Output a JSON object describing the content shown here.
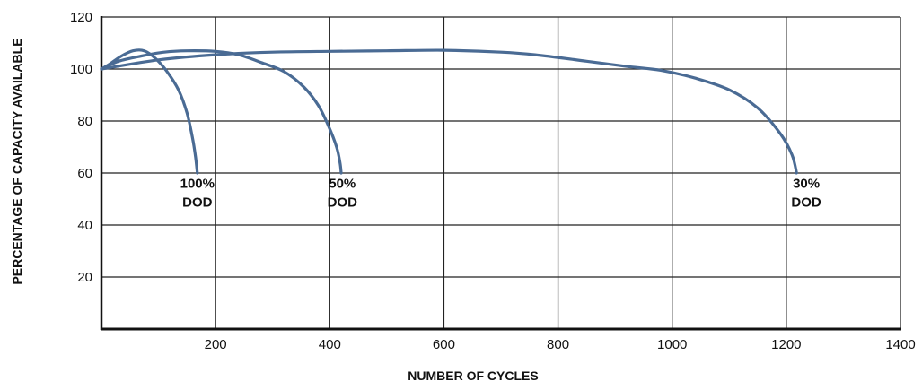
{
  "chart_data": {
    "type": "line",
    "title": "",
    "xlabel": "NUMBER OF CYCLES",
    "ylabel": "PERCENTAGE OF CAPACITY AVAILABLE",
    "xlim": [
      0,
      1400
    ],
    "ylim": [
      0,
      120
    ],
    "x_ticks": [
      200,
      400,
      600,
      800,
      1000,
      1200,
      1400
    ],
    "y_ticks": [
      20,
      40,
      60,
      80,
      100,
      120
    ],
    "grid": true,
    "line_color": "#4a6b94",
    "series": [
      {
        "name": "",
        "label_lines": [
          "100%",
          "DOD"
        ],
        "points": [
          [
            0,
            100
          ],
          [
            15,
            102
          ],
          [
            35,
            105
          ],
          [
            55,
            107
          ],
          [
            75,
            107
          ],
          [
            95,
            104
          ],
          [
            115,
            99
          ],
          [
            135,
            92
          ],
          [
            150,
            83
          ],
          [
            160,
            73
          ],
          [
            165,
            66
          ],
          [
            168,
            60
          ]
        ]
      },
      {
        "name": "",
        "label_lines": [
          "50%",
          "DOD"
        ],
        "points": [
          [
            0,
            100
          ],
          [
            30,
            103
          ],
          [
            70,
            105
          ],
          [
            110,
            106.5
          ],
          [
            150,
            107
          ],
          [
            200,
            106.8
          ],
          [
            240,
            105.5
          ],
          [
            280,
            102.5
          ],
          [
            320,
            99
          ],
          [
            355,
            93
          ],
          [
            380,
            86
          ],
          [
            398,
            78
          ],
          [
            412,
            70
          ],
          [
            418,
            64
          ],
          [
            420,
            60
          ]
        ]
      },
      {
        "name": "",
        "label_lines": [
          "30%",
          "DOD"
        ],
        "points": [
          [
            0,
            100
          ],
          [
            100,
            103.5
          ],
          [
            200,
            105.5
          ],
          [
            300,
            106.5
          ],
          [
            400,
            106.8
          ],
          [
            500,
            107
          ],
          [
            600,
            107.2
          ],
          [
            700,
            106.5
          ],
          [
            760,
            105.5
          ],
          [
            850,
            103
          ],
          [
            920,
            101
          ],
          [
            980,
            99.5
          ],
          [
            1040,
            96.5
          ],
          [
            1100,
            92
          ],
          [
            1150,
            85
          ],
          [
            1190,
            75
          ],
          [
            1210,
            67
          ],
          [
            1218,
            60
          ]
        ]
      }
    ],
    "annotations": [
      {
        "lines": [
          "100%",
          "DOD"
        ],
        "x": 168,
        "y": 55
      },
      {
        "lines": [
          "50%",
          "DOD"
        ],
        "x": 422,
        "y": 55
      },
      {
        "lines": [
          "30%",
          "DOD"
        ],
        "x": 1235,
        "y": 55
      }
    ]
  }
}
